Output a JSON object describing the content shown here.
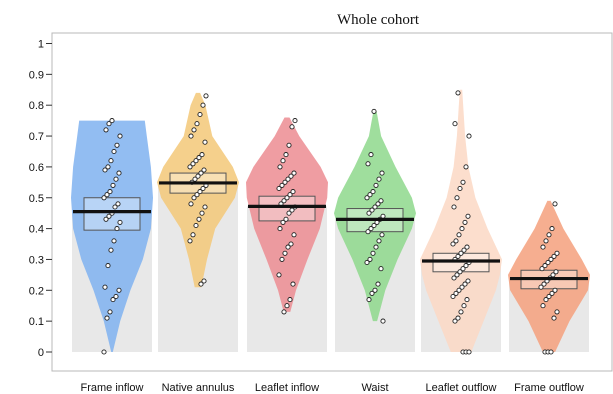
{
  "chart_data": {
    "type": "violin",
    "title": "Whole cohort",
    "xlabel": "",
    "ylabel": "",
    "ylim": [
      0,
      1.05
    ],
    "yticks": [
      0,
      0.1,
      0.2,
      0.3,
      0.4,
      0.5,
      0.6,
      0.7,
      0.8,
      0.9,
      1
    ],
    "ytick_labels": [
      "0",
      "0.1",
      "0.2",
      "0.3",
      "0.4",
      "0.5",
      "0.6",
      "0.7",
      "0.8",
      "0.9",
      "1"
    ],
    "grid": false,
    "categories": [
      "Frame inflow",
      "Native annulus",
      "Leaflet inflow",
      "Waist",
      "Leaflet outflow",
      "Frame outflow"
    ],
    "series": [
      {
        "category": "Frame inflow",
        "color": "#7fb2f0",
        "mean": 0.455,
        "ci": [
          0.395,
          0.5
        ],
        "min": 0.0,
        "max": 0.75,
        "density": [
          [
            0.0,
            0.02
          ],
          [
            0.1,
            0.2
          ],
          [
            0.2,
            0.45
          ],
          [
            0.3,
            0.75
          ],
          [
            0.4,
            0.95
          ],
          [
            0.5,
            1.0
          ],
          [
            0.6,
            0.95
          ],
          [
            0.7,
            0.85
          ],
          [
            0.75,
            0.8
          ]
        ],
        "points": [
          0.0,
          0.11,
          0.13,
          0.17,
          0.18,
          0.2,
          0.21,
          0.28,
          0.33,
          0.36,
          0.4,
          0.42,
          0.43,
          0.44,
          0.45,
          0.47,
          0.48,
          0.5,
          0.51,
          0.52,
          0.54,
          0.56,
          0.58,
          0.59,
          0.6,
          0.62,
          0.65,
          0.67,
          0.7,
          0.72,
          0.74,
          0.75
        ]
      },
      {
        "category": "Native annulus",
        "color": "#f3c878",
        "mean": 0.548,
        "ci": [
          0.515,
          0.58
        ],
        "min": 0.21,
        "max": 0.84,
        "density": [
          [
            0.21,
            0.08
          ],
          [
            0.3,
            0.22
          ],
          [
            0.4,
            0.42
          ],
          [
            0.5,
            0.9
          ],
          [
            0.55,
            1.0
          ],
          [
            0.6,
            0.85
          ],
          [
            0.7,
            0.35
          ],
          [
            0.8,
            0.18
          ],
          [
            0.84,
            0.05
          ]
        ],
        "points": [
          0.22,
          0.23,
          0.36,
          0.38,
          0.41,
          0.43,
          0.45,
          0.47,
          0.48,
          0.5,
          0.51,
          0.52,
          0.53,
          0.54,
          0.55,
          0.56,
          0.57,
          0.58,
          0.59,
          0.6,
          0.61,
          0.62,
          0.63,
          0.64,
          0.68,
          0.7,
          0.72,
          0.74,
          0.77,
          0.8,
          0.83
        ]
      },
      {
        "category": "Leaflet inflow",
        "color": "#ec8c92",
        "mean": 0.472,
        "ci": [
          0.425,
          0.505
        ],
        "min": 0.13,
        "max": 0.76,
        "density": [
          [
            0.13,
            0.08
          ],
          [
            0.2,
            0.22
          ],
          [
            0.3,
            0.5
          ],
          [
            0.4,
            0.8
          ],
          [
            0.5,
            0.98
          ],
          [
            0.55,
            1.0
          ],
          [
            0.6,
            0.82
          ],
          [
            0.7,
            0.3
          ],
          [
            0.76,
            0.06
          ]
        ],
        "points": [
          0.13,
          0.15,
          0.17,
          0.22,
          0.25,
          0.3,
          0.32,
          0.34,
          0.35,
          0.38,
          0.4,
          0.42,
          0.43,
          0.45,
          0.46,
          0.47,
          0.48,
          0.49,
          0.5,
          0.51,
          0.52,
          0.53,
          0.54,
          0.55,
          0.56,
          0.57,
          0.58,
          0.6,
          0.62,
          0.64,
          0.67,
          0.73,
          0.75
        ]
      },
      {
        "category": "Waist",
        "color": "#8ed88c",
        "mean": 0.43,
        "ci": [
          0.39,
          0.465
        ],
        "min": 0.1,
        "max": 0.78,
        "density": [
          [
            0.1,
            0.05
          ],
          [
            0.2,
            0.25
          ],
          [
            0.3,
            0.55
          ],
          [
            0.4,
            0.9
          ],
          [
            0.45,
            1.0
          ],
          [
            0.5,
            0.9
          ],
          [
            0.6,
            0.5
          ],
          [
            0.7,
            0.15
          ],
          [
            0.78,
            0.04
          ]
        ],
        "points": [
          0.1,
          0.17,
          0.19,
          0.2,
          0.22,
          0.27,
          0.29,
          0.3,
          0.32,
          0.34,
          0.36,
          0.38,
          0.39,
          0.4,
          0.41,
          0.42,
          0.43,
          0.44,
          0.45,
          0.46,
          0.47,
          0.48,
          0.49,
          0.5,
          0.51,
          0.52,
          0.54,
          0.56,
          0.58,
          0.61,
          0.64,
          0.78
        ]
      },
      {
        "category": "Leaflet outflow",
        "color": "#fbd8c4",
        "mean": 0.295,
        "ci": [
          0.26,
          0.32
        ],
        "min": 0.0,
        "max": 0.85,
        "density": [
          [
            0.0,
            0.25
          ],
          [
            0.1,
            0.55
          ],
          [
            0.2,
            0.85
          ],
          [
            0.25,
            0.95
          ],
          [
            0.3,
            1.0
          ],
          [
            0.4,
            0.65
          ],
          [
            0.5,
            0.35
          ],
          [
            0.6,
            0.18
          ],
          [
            0.7,
            0.1
          ],
          [
            0.85,
            0.03
          ]
        ],
        "points": [
          0.0,
          0.0,
          0.0,
          0.1,
          0.11,
          0.13,
          0.15,
          0.17,
          0.18,
          0.19,
          0.2,
          0.21,
          0.22,
          0.23,
          0.24,
          0.25,
          0.26,
          0.27,
          0.28,
          0.29,
          0.3,
          0.31,
          0.32,
          0.33,
          0.34,
          0.35,
          0.36,
          0.38,
          0.4,
          0.42,
          0.44,
          0.47,
          0.5,
          0.53,
          0.55,
          0.6,
          0.7,
          0.74,
          0.84
        ]
      },
      {
        "category": "Frame outflow",
        "color": "#f4a07c",
        "mean": 0.238,
        "ci": [
          0.205,
          0.265
        ],
        "min": 0.0,
        "max": 0.49,
        "density": [
          [
            0.0,
            0.15
          ],
          [
            0.1,
            0.5
          ],
          [
            0.2,
            0.95
          ],
          [
            0.25,
            1.0
          ],
          [
            0.3,
            0.8
          ],
          [
            0.4,
            0.35
          ],
          [
            0.49,
            0.04
          ]
        ],
        "points": [
          0.0,
          0.0,
          0.0,
          0.11,
          0.13,
          0.15,
          0.17,
          0.18,
          0.19,
          0.2,
          0.21,
          0.22,
          0.23,
          0.24,
          0.25,
          0.26,
          0.27,
          0.28,
          0.29,
          0.3,
          0.31,
          0.32,
          0.34,
          0.36,
          0.38,
          0.4,
          0.48
        ]
      }
    ]
  }
}
